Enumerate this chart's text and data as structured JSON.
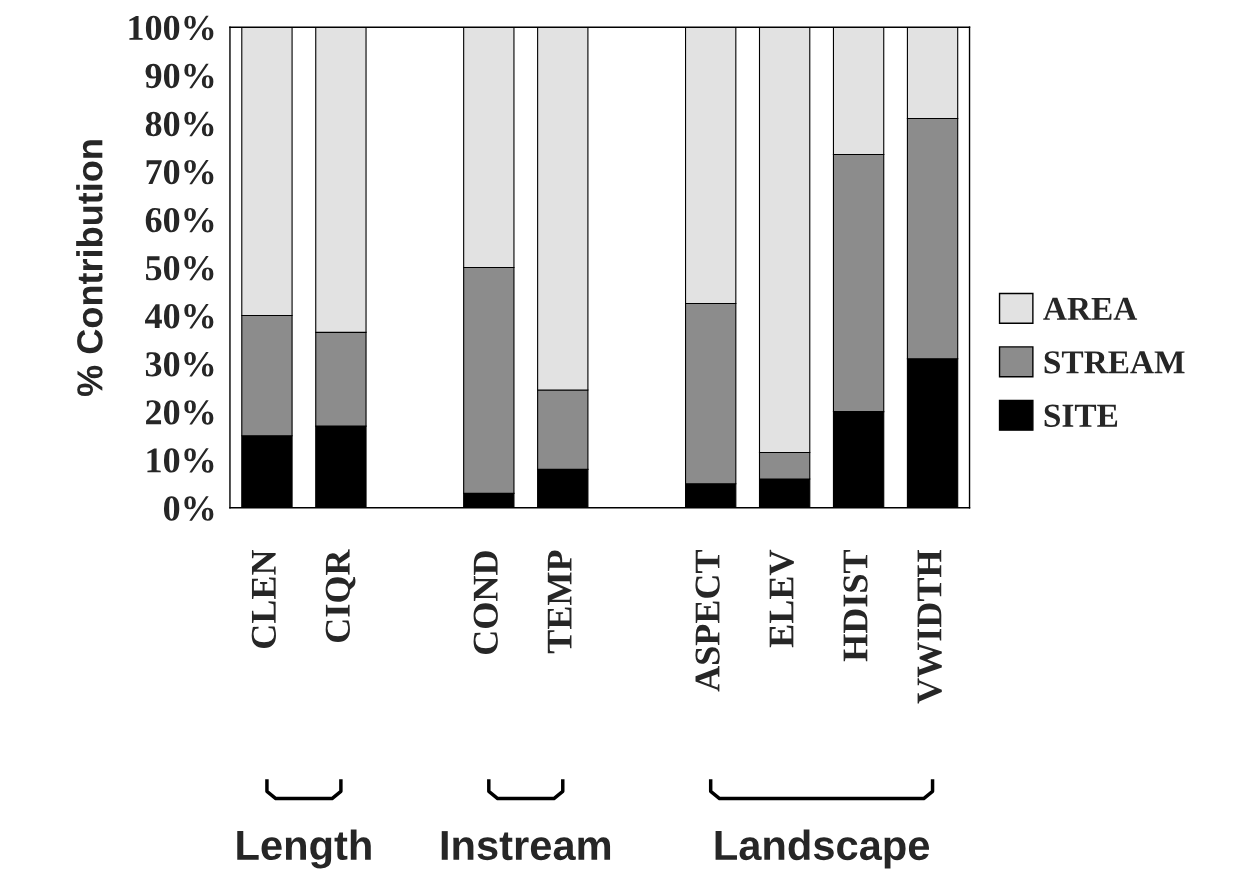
{
  "chart_data": {
    "type": "bar",
    "stacked": true,
    "ylabel": "% Contribution",
    "categories": [
      "CLEN",
      "CIQR",
      null,
      "COND",
      "TEMP",
      null,
      "ASPECT",
      "ELEV",
      "HDIST",
      "VWIDTH"
    ],
    "series": [
      {
        "name": "SITE",
        "color": "#000000",
        "values": [
          15,
          17,
          null,
          3,
          8,
          null,
          5,
          6,
          20,
          31
        ]
      },
      {
        "name": "STREAM",
        "color": "#8c8c8c",
        "values": [
          25,
          19.5,
          null,
          47,
          16.5,
          null,
          37.5,
          5.5,
          53.5,
          50
        ]
      },
      {
        "name": "AREA",
        "color": "#e2e2e2",
        "values": [
          60,
          63.5,
          null,
          50,
          75.5,
          null,
          57.5,
          88.5,
          26.5,
          19
        ]
      }
    ],
    "ylim": [
      0,
      100
    ],
    "yticks": [
      {
        "value": 0,
        "label": "0%"
      },
      {
        "value": 10,
        "label": "10%"
      },
      {
        "value": 20,
        "label": "20%"
      },
      {
        "value": 30,
        "label": "30%"
      },
      {
        "value": 40,
        "label": "40%"
      },
      {
        "value": 50,
        "label": "50%"
      },
      {
        "value": 60,
        "label": "60%"
      },
      {
        "value": 70,
        "label": "70%"
      },
      {
        "value": 80,
        "label": "80%"
      },
      {
        "value": 90,
        "label": "90%"
      },
      {
        "value": 100,
        "label": "100%"
      }
    ],
    "grid": false,
    "legend": "right",
    "annotations": [
      "Length",
      "Instream",
      "Landscape"
    ]
  }
}
